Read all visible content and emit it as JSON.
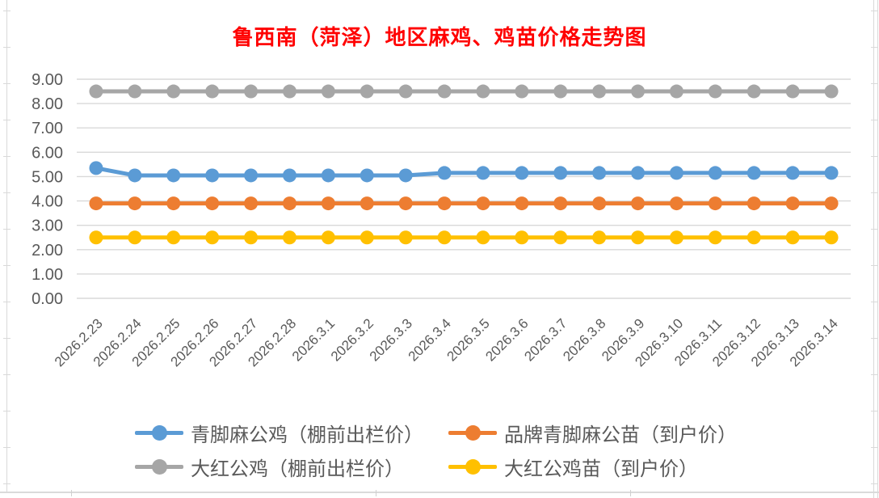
{
  "title": {
    "text": "鲁西南（菏泽）地区麻鸡、鸡苗价格走势图",
    "color": "#ff0000"
  },
  "chart_data": {
    "type": "line",
    "title": "鲁西南（菏泽）地区麻鸡、鸡苗价格走势图",
    "categories": [
      "2026.2.23",
      "2026.2.24",
      "2026.2.25",
      "2026.2.26",
      "2026.2.27",
      "2026.2.28",
      "2026.3.1",
      "2026.3.2",
      "2026.3.3",
      "2026.3.4",
      "2026.3.5",
      "2026.3.6",
      "2026.3.7",
      "2026.3.8",
      "2026.3.9",
      "2026.3.10",
      "2026.3.11",
      "2026.3.12",
      "2026.3.13",
      "2026.3.14"
    ],
    "series": [
      {
        "name": "青脚麻公鸡（棚前出栏价）",
        "color": "#5b9bd5",
        "values": [
          5.35,
          5.05,
          5.05,
          5.05,
          5.05,
          5.05,
          5.05,
          5.05,
          5.05,
          5.15,
          5.15,
          5.15,
          5.15,
          5.15,
          5.15,
          5.15,
          5.15,
          5.15,
          5.15,
          5.15
        ]
      },
      {
        "name": "品牌青脚麻公苗（到户价）",
        "color": "#ed7d31",
        "values": [
          3.9,
          3.9,
          3.9,
          3.9,
          3.9,
          3.9,
          3.9,
          3.9,
          3.9,
          3.9,
          3.9,
          3.9,
          3.9,
          3.9,
          3.9,
          3.9,
          3.9,
          3.9,
          3.9,
          3.9
        ]
      },
      {
        "name": "大红公鸡（棚前出栏价）",
        "color": "#a6a6a6",
        "values": [
          8.5,
          8.5,
          8.5,
          8.5,
          8.5,
          8.5,
          8.5,
          8.5,
          8.5,
          8.5,
          8.5,
          8.5,
          8.5,
          8.5,
          8.5,
          8.5,
          8.5,
          8.5,
          8.5,
          8.5
        ]
      },
      {
        "name": "大红公鸡苗（到户价）",
        "color": "#ffc000",
        "values": [
          2.5,
          2.5,
          2.5,
          2.5,
          2.5,
          2.5,
          2.5,
          2.5,
          2.5,
          2.5,
          2.5,
          2.5,
          2.5,
          2.5,
          2.5,
          2.5,
          2.5,
          2.5,
          2.5,
          2.5
        ]
      }
    ],
    "ylim": [
      0,
      9
    ],
    "ytick_step": 1,
    "ytick_decimals": 2,
    "grid": true,
    "legend_position": "bottom",
    "axis_label_color": "#595959",
    "gridline_color": "#d9d9d9",
    "xlabel": "",
    "ylabel": ""
  }
}
